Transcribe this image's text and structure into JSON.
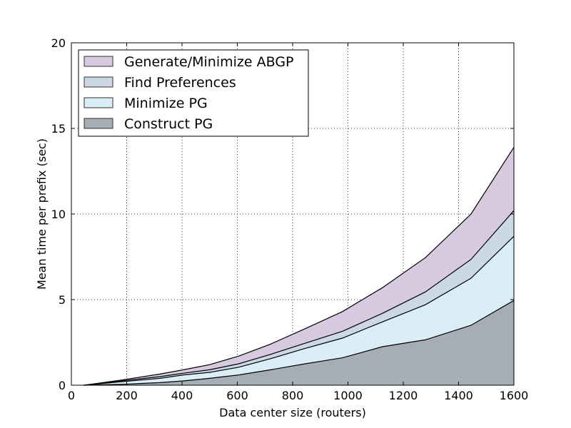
{
  "chart_data": {
    "type": "area",
    "stacked": true,
    "title": "",
    "xlabel": "Data center size (routers)",
    "ylabel": "Mean time per prefix (sec)",
    "xlim": [
      0,
      1600
    ],
    "ylim": [
      0,
      20
    ],
    "xticks": [
      0,
      200,
      400,
      600,
      800,
      1000,
      1200,
      1400,
      1600
    ],
    "yticks": [
      0,
      5,
      10,
      15,
      20
    ],
    "grid": true,
    "legend_position": "top-left",
    "x": [
      45,
      180,
      320,
      405,
      500,
      605,
      720,
      845,
      980,
      1125,
      1280,
      1445,
      1600
    ],
    "series": [
      {
        "name": "Construct PG",
        "color": "#a6adb5",
        "values": [
          0.0,
          0.05,
          0.15,
          0.25,
          0.4,
          0.6,
          0.9,
          1.25,
          1.6,
          2.25,
          2.65,
          3.5,
          4.95
        ]
      },
      {
        "name": "Minimize PG",
        "color": "#d9eef7",
        "values": [
          0.0,
          0.15,
          0.25,
          0.35,
          0.35,
          0.45,
          0.65,
          0.9,
          1.15,
          1.45,
          2.05,
          2.75,
          3.75
        ]
      },
      {
        "name": "Find Preferences",
        "color": "#ccd9e5",
        "values": [
          0.0,
          0.05,
          0.1,
          0.1,
          0.15,
          0.2,
          0.25,
          0.3,
          0.4,
          0.5,
          0.75,
          1.1,
          1.5
        ]
      },
      {
        "name": "Generate/Minimize ABGP",
        "color": "#d6c9e0",
        "values": [
          0.0,
          0.05,
          0.15,
          0.2,
          0.3,
          0.45,
          0.6,
          0.85,
          1.15,
          1.5,
          2.0,
          2.65,
          3.7
        ]
      }
    ],
    "legend_order": [
      "Generate/Minimize ABGP",
      "Find Preferences",
      "Minimize PG",
      "Construct PG"
    ]
  }
}
